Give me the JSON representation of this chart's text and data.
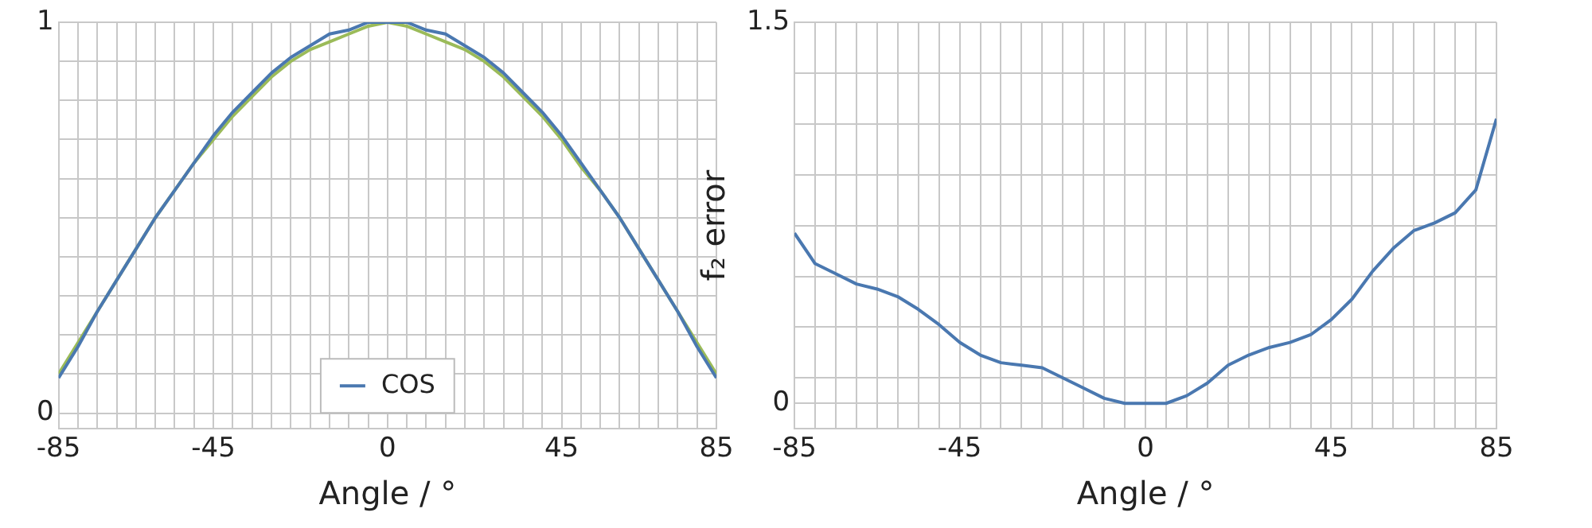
{
  "chart_data": [
    {
      "type": "line",
      "xlabel": "Angle / °",
      "x": [
        -85,
        -80,
        -75,
        -70,
        -65,
        -60,
        -55,
        -50,
        -45,
        -40,
        -35,
        -30,
        -25,
        -20,
        -15,
        -10,
        -5,
        0,
        5,
        10,
        15,
        20,
        25,
        30,
        35,
        40,
        45,
        50,
        55,
        60,
        65,
        70,
        75,
        80,
        85
      ],
      "series": [
        {
          "name": "COS",
          "color": "#4a78b0",
          "values": [
            0.09,
            0.17,
            0.26,
            0.34,
            0.42,
            0.5,
            0.57,
            0.64,
            0.71,
            0.77,
            0.82,
            0.87,
            0.91,
            0.94,
            0.97,
            0.98,
            1.0,
            1.0,
            1.0,
            0.98,
            0.97,
            0.94,
            0.91,
            0.87,
            0.82,
            0.77,
            0.71,
            0.64,
            0.57,
            0.5,
            0.42,
            0.34,
            0.26,
            0.17,
            0.09
          ]
        },
        {
          "color": "#9bbb59",
          "values": [
            0.1,
            0.18,
            0.26,
            0.34,
            0.42,
            0.5,
            0.57,
            0.64,
            0.7,
            0.76,
            0.81,
            0.86,
            0.9,
            0.93,
            0.95,
            0.97,
            0.99,
            1.0,
            0.99,
            0.97,
            0.95,
            0.93,
            0.9,
            0.86,
            0.81,
            0.76,
            0.7,
            0.63,
            0.57,
            0.5,
            0.42,
            0.34,
            0.26,
            0.18,
            0.1
          ]
        }
      ],
      "xlim": [
        -85,
        85
      ],
      "xticks": [
        -85,
        {
          "value": -80,
          "label": null
        },
        {
          "value": -75,
          "label": null
        },
        {
          "value": -70,
          "label": null
        },
        {
          "value": -65,
          "label": null
        },
        {
          "value": -60,
          "label": null
        },
        {
          "value": -55,
          "label": null
        },
        {
          "value": -50,
          "label": null
        },
        -45,
        {
          "value": -40,
          "label": null
        },
        {
          "value": -35,
          "label": null
        },
        {
          "value": -30,
          "label": null
        },
        {
          "value": -25,
          "label": null
        },
        {
          "value": -20,
          "label": null
        },
        {
          "value": -15,
          "label": null
        },
        {
          "value": -10,
          "label": null
        },
        {
          "value": -5,
          "label": null
        },
        0,
        {
          "value": 5,
          "label": null
        },
        {
          "value": 10,
          "label": null
        },
        {
          "value": 15,
          "label": null
        },
        {
          "value": 20,
          "label": null
        },
        {
          "value": 25,
          "label": null
        },
        {
          "value": 30,
          "label": null
        },
        {
          "value": 35,
          "label": null
        },
        {
          "value": 40,
          "label": null
        },
        45,
        {
          "value": 50,
          "label": null
        },
        {
          "value": 55,
          "label": null
        },
        {
          "value": 60,
          "label": null
        },
        {
          "value": 65,
          "label": null
        },
        {
          "value": 70,
          "label": null
        },
        {
          "value": 75,
          "label": null
        },
        {
          "value": 80,
          "label": null
        },
        85
      ],
      "ylim": [
        -0.04,
        1
      ],
      "yticks": [
        0,
        {
          "value": 0.1,
          "label": null
        },
        {
          "value": 0.2,
          "label": null
        },
        {
          "value": 0.3,
          "label": null
        },
        {
          "value": 0.4,
          "label": null
        },
        {
          "value": 0.5,
          "label": null
        },
        {
          "value": 0.6,
          "label": null
        },
        {
          "value": 0.7,
          "label": null
        },
        {
          "value": 0.8,
          "label": null
        },
        {
          "value": 0.9,
          "label": null
        },
        1
      ],
      "grid": true,
      "legend": "bottom",
      "marker": "none",
      "line_style": "solid"
    },
    {
      "type": "line",
      "xlabel": "Angle / °",
      "ylabel": "f₂ error",
      "x": [
        -85,
        -80,
        -75,
        -70,
        -65,
        -60,
        -55,
        -50,
        -45,
        -40,
        -35,
        -30,
        -25,
        -20,
        -15,
        -10,
        -5,
        0,
        5,
        10,
        15,
        20,
        25,
        30,
        35,
        40,
        45,
        50,
        55,
        60,
        65,
        70,
        75,
        80,
        85
      ],
      "series": [
        {
          "color": "#4a78b0",
          "values": [
            0.67,
            0.55,
            0.51,
            0.47,
            0.45,
            0.42,
            0.37,
            0.31,
            0.24,
            0.19,
            0.16,
            0.15,
            0.14,
            0.1,
            0.06,
            0.02,
            0.0,
            0.0,
            0.0,
            0.03,
            0.08,
            0.15,
            0.19,
            0.22,
            0.24,
            0.27,
            0.33,
            0.41,
            0.52,
            0.61,
            0.68,
            0.71,
            0.75,
            0.84,
            1.12
          ]
        }
      ],
      "xlim": [
        -85,
        85
      ],
      "xticks": [
        -85,
        {
          "value": -80,
          "label": null
        },
        {
          "value": -75,
          "label": null
        },
        {
          "value": -70,
          "label": null
        },
        {
          "value": -65,
          "label": null
        },
        {
          "value": -60,
          "label": null
        },
        {
          "value": -55,
          "label": null
        },
        {
          "value": -50,
          "label": null
        },
        -45,
        {
          "value": -40,
          "label": null
        },
        {
          "value": -35,
          "label": null
        },
        {
          "value": -30,
          "label": null
        },
        {
          "value": -25,
          "label": null
        },
        {
          "value": -20,
          "label": null
        },
        {
          "value": -15,
          "label": null
        },
        {
          "value": -10,
          "label": null
        },
        {
          "value": -5,
          "label": null
        },
        0,
        {
          "value": 5,
          "label": null
        },
        {
          "value": 10,
          "label": null
        },
        {
          "value": 15,
          "label": null
        },
        {
          "value": 20,
          "label": null
        },
        {
          "value": 25,
          "label": null
        },
        {
          "value": 30,
          "label": null
        },
        {
          "value": 35,
          "label": null
        },
        {
          "value": 40,
          "label": null
        },
        45,
        {
          "value": 50,
          "label": null
        },
        {
          "value": 55,
          "label": null
        },
        {
          "value": 60,
          "label": null
        },
        {
          "value": 65,
          "label": null
        },
        {
          "value": 70,
          "label": null
        },
        {
          "value": 75,
          "label": null
        },
        {
          "value": 80,
          "label": null
        },
        85
      ],
      "ylim": [
        -0.1,
        1.5
      ],
      "yticks": [
        {
          "value": -0.1,
          "label": null
        },
        0,
        {
          "value": 0.1,
          "label": null
        },
        {
          "value": 0.3,
          "label": null
        },
        {
          "value": 0.5,
          "label": null
        },
        {
          "value": 0.7,
          "label": null
        },
        {
          "value": 0.9,
          "label": null
        },
        {
          "value": 1.1,
          "label": null
        },
        {
          "value": 1.3,
          "label": null
        },
        1.5
      ],
      "grid": true,
      "marker": "none",
      "line_style": "solid"
    }
  ]
}
